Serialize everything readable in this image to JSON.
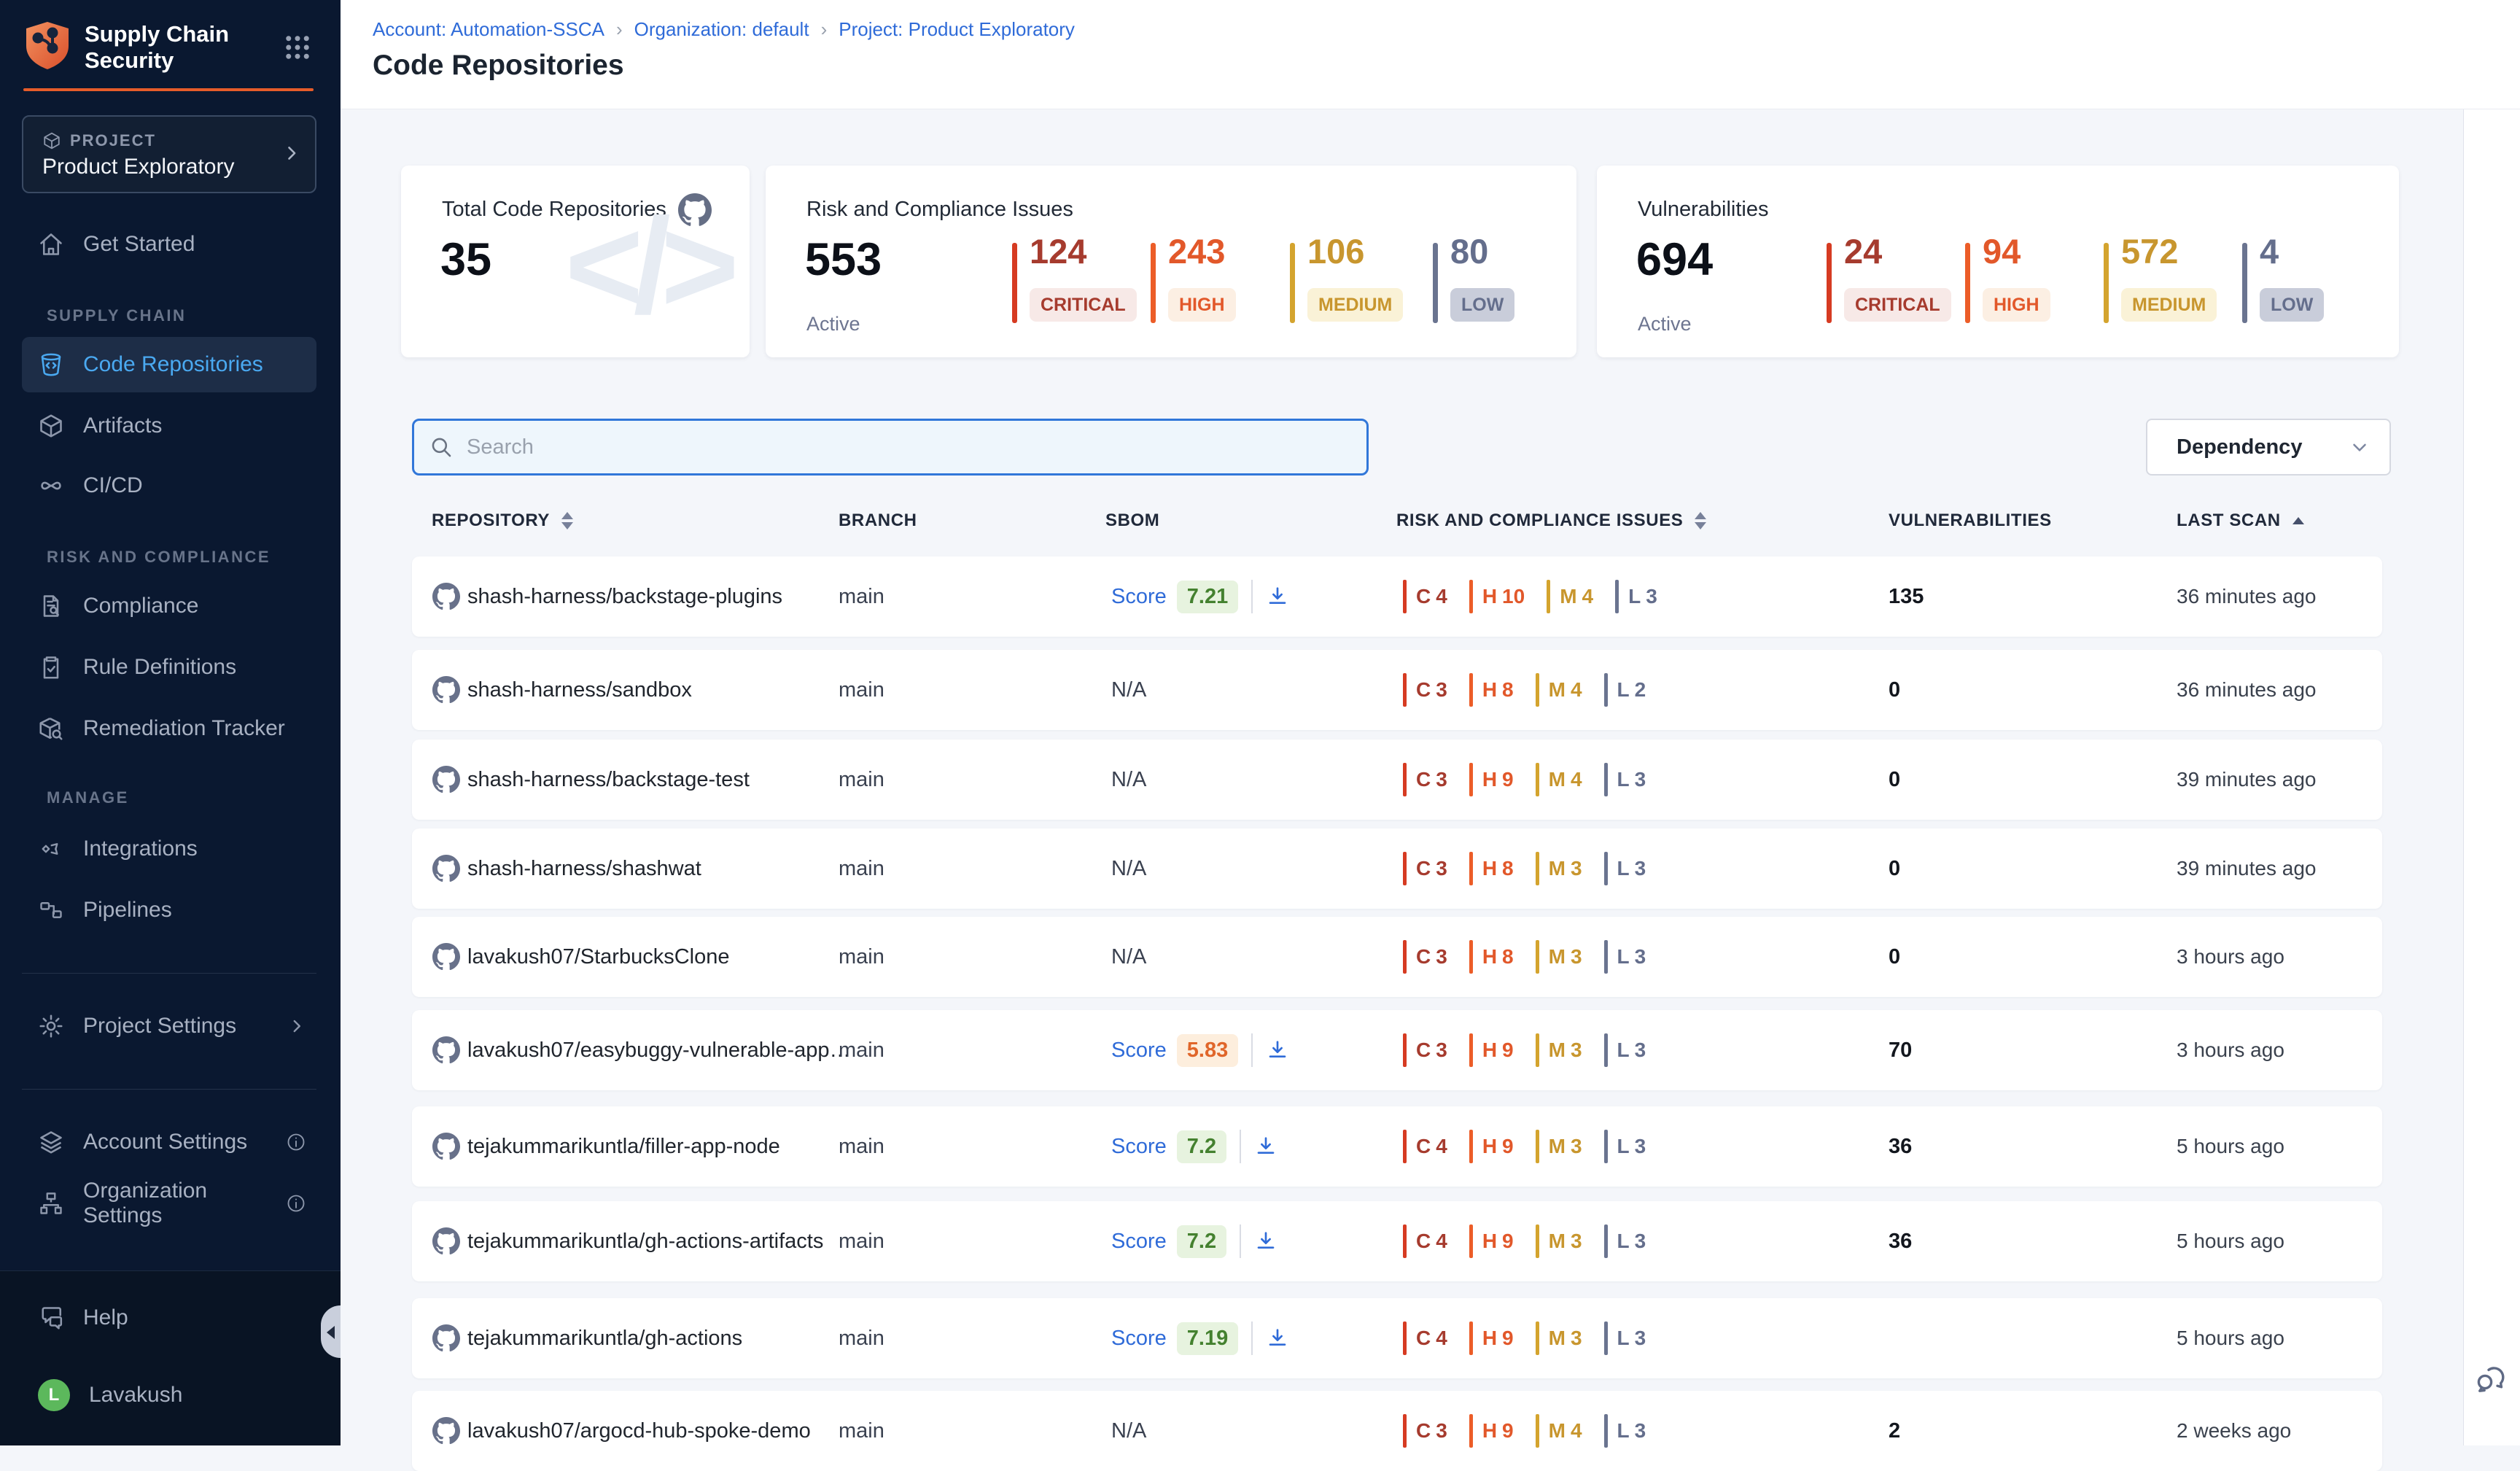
{
  "app": {
    "logo_line1": "Supply Chain",
    "logo_line2": "Security"
  },
  "sidebar": {
    "project_label": "PROJECT",
    "project_name": "Product Exploratory",
    "get_started": "Get Started",
    "section_supply_chain": "SUPPLY CHAIN",
    "code_repositories": "Code Repositories",
    "artifacts": "Artifacts",
    "cicd": "CI/CD",
    "section_risk": "RISK AND COMPLIANCE",
    "compliance": "Compliance",
    "rule_definitions": "Rule Definitions",
    "remediation_tracker": "Remediation Tracker",
    "section_manage": "MANAGE",
    "integrations": "Integrations",
    "pipelines": "Pipelines",
    "project_settings": "Project Settings",
    "account_settings": "Account Settings",
    "organization_settings": "Organization Settings",
    "help": "Help",
    "user_name": "Lavakush",
    "user_initial": "L"
  },
  "breadcrumb": {
    "account": "Account: Automation-SSCA",
    "organization": "Organization: default",
    "project": "Project: Product Exploratory",
    "separator": "›"
  },
  "page": {
    "title": "Code Repositories"
  },
  "cards": {
    "repos": {
      "title": "Total Code Repositories",
      "value": "35",
      "watermark": "</>"
    },
    "risk": {
      "title": "Risk and Compliance Issues",
      "value": "553",
      "sub": "Active",
      "severities": [
        {
          "key": "critical",
          "label": "CRITICAL",
          "value": "124"
        },
        {
          "key": "high",
          "label": "HIGH",
          "value": "243"
        },
        {
          "key": "medium",
          "label": "MEDIUM",
          "value": "106"
        },
        {
          "key": "low",
          "label": "LOW",
          "value": "80"
        }
      ]
    },
    "vulns": {
      "title": "Vulnerabilities",
      "value": "694",
      "sub": "Active",
      "severities": [
        {
          "key": "critical",
          "label": "CRITICAL",
          "value": "24"
        },
        {
          "key": "high",
          "label": "HIGH",
          "value": "94"
        },
        {
          "key": "medium",
          "label": "MEDIUM",
          "value": "572"
        },
        {
          "key": "low",
          "label": "LOW",
          "value": "4"
        }
      ]
    }
  },
  "toolbar": {
    "search_placeholder": "Search",
    "filter_value": "Dependency"
  },
  "table": {
    "score_label": "Score",
    "na_label": "N/A",
    "risk_letters": {
      "c": "C",
      "h": "H",
      "m": "M",
      "l": "L"
    },
    "columns": {
      "repository": "REPOSITORY",
      "branch": "BRANCH",
      "sbom": "SBOM",
      "risk": "RISK AND COMPLIANCE ISSUES",
      "vulnerabilities": "VULNERABILITIES",
      "last_scan": "LAST SCAN"
    },
    "rows": [
      {
        "name": "shash-harness/backstage-plugins",
        "branch": "main",
        "sbom": {
          "type": "score",
          "score": "7.21",
          "tone": "green"
        },
        "risk": {
          "c": "4",
          "h": "10",
          "m": "4",
          "l": "3"
        },
        "vulns": "135",
        "last_scan": "36 minutes ago"
      },
      {
        "name": "shash-harness/sandbox",
        "branch": "main",
        "sbom": {
          "type": "na"
        },
        "risk": {
          "c": "3",
          "h": "8",
          "m": "4",
          "l": "2"
        },
        "vulns": "0",
        "last_scan": "36 minutes ago"
      },
      {
        "name": "shash-harness/backstage-test",
        "branch": "main",
        "sbom": {
          "type": "na"
        },
        "risk": {
          "c": "3",
          "h": "9",
          "m": "4",
          "l": "3"
        },
        "vulns": "0",
        "last_scan": "39 minutes ago"
      },
      {
        "name": "shash-harness/shashwat",
        "branch": "main",
        "sbom": {
          "type": "na"
        },
        "risk": {
          "c": "3",
          "h": "8",
          "m": "3",
          "l": "3"
        },
        "vulns": "0",
        "last_scan": "39 minutes ago"
      },
      {
        "name": "lavakush07/StarbucksClone",
        "branch": "main",
        "sbom": {
          "type": "na"
        },
        "risk": {
          "c": "3",
          "h": "8",
          "m": "3",
          "l": "3"
        },
        "vulns": "0",
        "last_scan": "3 hours ago"
      },
      {
        "name": "lavakush07/easybuggy-vulnerable-app…",
        "branch": "main",
        "sbom": {
          "type": "score",
          "score": "5.83",
          "tone": "orange"
        },
        "risk": {
          "c": "3",
          "h": "9",
          "m": "3",
          "l": "3"
        },
        "vulns": "70",
        "last_scan": "3 hours ago"
      },
      {
        "name": "tejakummarikuntla/filler-app-node",
        "branch": "main",
        "sbom": {
          "type": "score",
          "score": "7.2",
          "tone": "green"
        },
        "risk": {
          "c": "4",
          "h": "9",
          "m": "3",
          "l": "3"
        },
        "vulns": "36",
        "last_scan": "5 hours ago"
      },
      {
        "name": "tejakummarikuntla/gh-actions-artifacts",
        "branch": "main",
        "sbom": {
          "type": "score",
          "score": "7.2",
          "tone": "green"
        },
        "risk": {
          "c": "4",
          "h": "9",
          "m": "3",
          "l": "3"
        },
        "vulns": "36",
        "last_scan": "5 hours ago"
      },
      {
        "name": "tejakummarikuntla/gh-actions",
        "branch": "main",
        "sbom": {
          "type": "score",
          "score": "7.19",
          "tone": "green"
        },
        "risk": {
          "c": "4",
          "h": "9",
          "m": "3",
          "l": "3"
        },
        "vulns": "",
        "last_scan": "5 hours ago"
      },
      {
        "name": "lavakush07/argocd-hub-spoke-demo",
        "branch": "main",
        "sbom": {
          "type": "na"
        },
        "risk": {
          "c": "3",
          "h": "9",
          "m": "4",
          "l": "3"
        },
        "vulns": "2",
        "last_scan": "2 weeks ago"
      }
    ]
  },
  "colors": {
    "critical": "#a63b2e",
    "critical_bar": "#d63b22",
    "critical_bg": "#f7e9e7",
    "high": "#e2582a",
    "high_bar": "#ec5d28",
    "high_bg": "#fcefe3",
    "medium": "#c8962e",
    "medium_bar": "#d4a42e",
    "medium_bg": "#faf2d7",
    "low": "#646e8c",
    "low_bar": "#6a7490",
    "low_bg": "#c9cdda",
    "accent_blue": "#2f6bd8",
    "brand_orange": "#e65c2a",
    "active_nav": "#4aa9f1"
  }
}
